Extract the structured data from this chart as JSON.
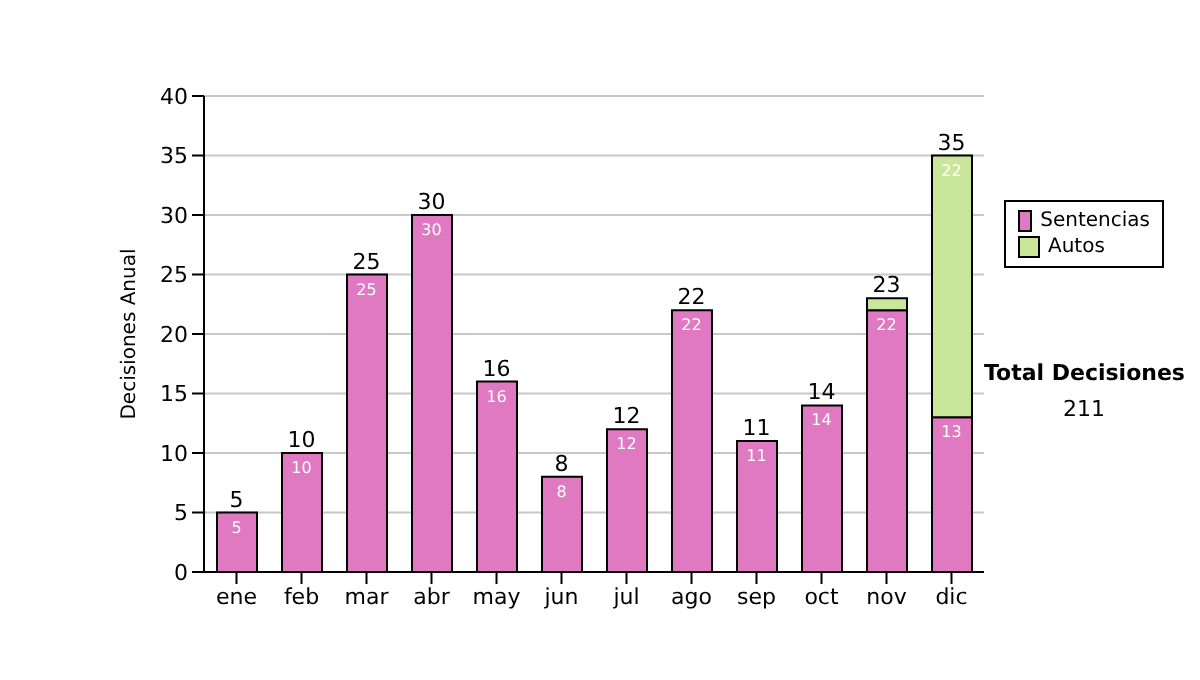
{
  "chart_data": {
    "type": "bar",
    "stacked": true,
    "ylabel": "Decisiones Anual",
    "categories": [
      "ene",
      "feb",
      "mar",
      "abr",
      "may",
      "jun",
      "jul",
      "ago",
      "sep",
      "oct",
      "nov",
      "dic"
    ],
    "series": [
      {
        "name": "Sentencias",
        "color": "#df79c1",
        "values": [
          5,
          10,
          25,
          30,
          16,
          8,
          12,
          22,
          11,
          14,
          22,
          13
        ],
        "value_labels": [
          "5",
          "10",
          "25",
          "30",
          "16",
          "8",
          "12",
          "22",
          "11",
          "14",
          "22",
          "13"
        ]
      },
      {
        "name": "Autos",
        "color": "#c9e69b",
        "values": [
          0,
          0,
          0,
          0,
          0,
          0,
          0,
          0,
          0,
          0,
          1,
          22
        ],
        "value_labels": [
          null,
          null,
          null,
          null,
          null,
          null,
          null,
          null,
          null,
          null,
          null,
          "22"
        ]
      }
    ],
    "totals": [
      "5",
      "10",
      "25",
      "30",
      "16",
      "8",
      "12",
      "22",
      "11",
      "14",
      "23",
      "35"
    ],
    "ylim": [
      0,
      40
    ],
    "yticks": [
      0,
      5,
      10,
      15,
      20,
      25,
      30,
      35,
      40
    ],
    "grid": "y",
    "legend": "right",
    "annotations": [
      "Total Decisiones",
      "211"
    ]
  }
}
